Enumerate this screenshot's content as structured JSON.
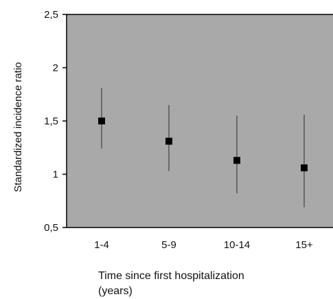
{
  "chart_data": {
    "type": "scatter",
    "categories": [
      "1-4",
      "5-9",
      "10-14",
      "15+"
    ],
    "values": [
      1.5,
      1.31,
      1.13,
      1.06
    ],
    "lower": [
      1.24,
      1.03,
      0.82,
      0.69
    ],
    "upper": [
      1.81,
      1.65,
      1.55,
      1.56
    ],
    "ylim": [
      0.5,
      2.5
    ],
    "yticks": [
      "0,5",
      "1",
      "1,5",
      "2",
      "2,5"
    ],
    "ytick_values": [
      0.5,
      1,
      1.5,
      2,
      2.5
    ],
    "ylabel": "Standardized incidence ratio",
    "xlabel_line1": "Time since first hospitalization",
    "xlabel_line2": "(years)",
    "plot_background": "#a9a9a9",
    "marker_color": "#000000",
    "errorbar_color": "#2a2a2a"
  }
}
